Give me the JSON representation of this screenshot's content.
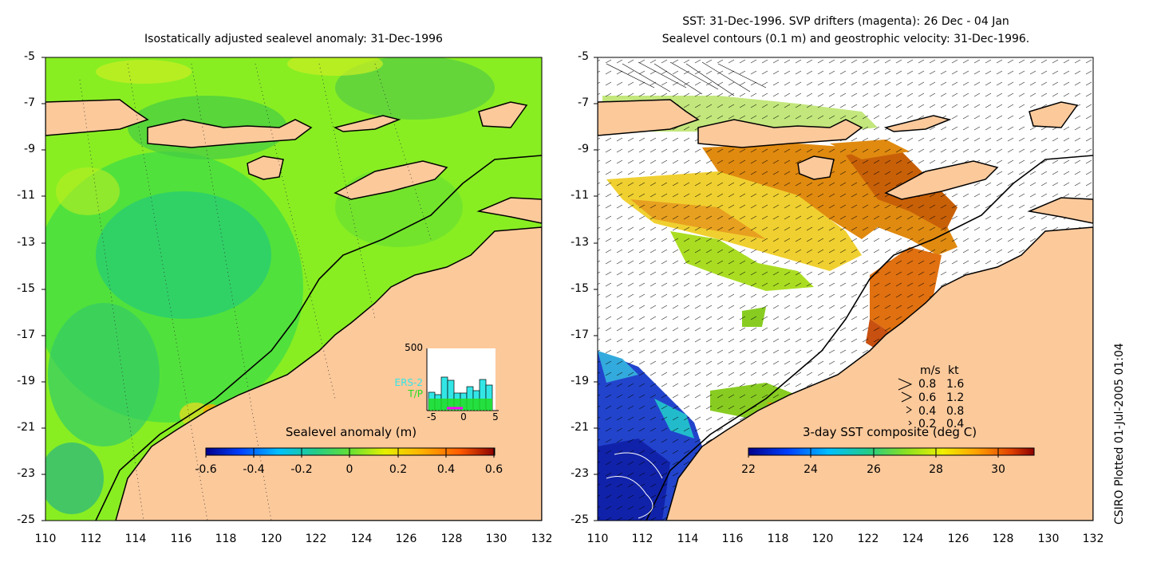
{
  "left_panel": {
    "title": "Isostatically adjusted sealevel anomaly: 31-Dec-1996",
    "colorbar": {
      "label": "Sealevel anomaly (m)",
      "ticks": [
        "-0.6",
        "-0.4",
        "-0.2",
        "0",
        "0.2",
        "0.4",
        "0.6"
      ]
    },
    "inset": {
      "ymax_label": "500",
      "legend_1": "ERS-2",
      "legend_2": "T/P",
      "ticks": [
        "-5",
        "0",
        "5"
      ],
      "legend_1_color": "#33e6e6",
      "legend_2_color": "#22dd22"
    }
  },
  "right_panel": {
    "title_line1": "SST: 31-Dec-1996. SVP drifters (magenta): 26 Dec - 04 Jan",
    "title_line2": "Sealevel contours (0.1 m) and geostrophic velocity: 31-Dec-1996.",
    "colorbar": {
      "label": "3-day SST composite (deg C)",
      "ticks": [
        "22",
        "24",
        "26",
        "28",
        "30"
      ]
    },
    "velocity_legend": {
      "header_ms": "m/s",
      "header_kt": "kt",
      "rows": [
        {
          "ms": "0.8",
          "kt": "1.6"
        },
        {
          "ms": "0.6",
          "kt": "1.2"
        },
        {
          "ms": "0.4",
          "kt": "0.8"
        },
        {
          "ms": "0.2",
          "kt": "0.4"
        }
      ]
    }
  },
  "axes": {
    "y_ticks": [
      "-5",
      "-7",
      "-9",
      "-11",
      "-13",
      "-15",
      "-17",
      "-19",
      "-21",
      "-23",
      "-25"
    ],
    "x_ticks": [
      "110",
      "112",
      "114",
      "116",
      "118",
      "120",
      "122",
      "124",
      "126",
      "128",
      "130",
      "132"
    ]
  },
  "footer": "CSIRO Plotted 01-Jul-2005 01:04",
  "colors": {
    "land": "#fcc99b",
    "anomaly_base": "#88ee22",
    "anomaly_low": "#22cc66",
    "sst_warm": "#e08a10",
    "sst_cool": "#2233bb"
  }
}
